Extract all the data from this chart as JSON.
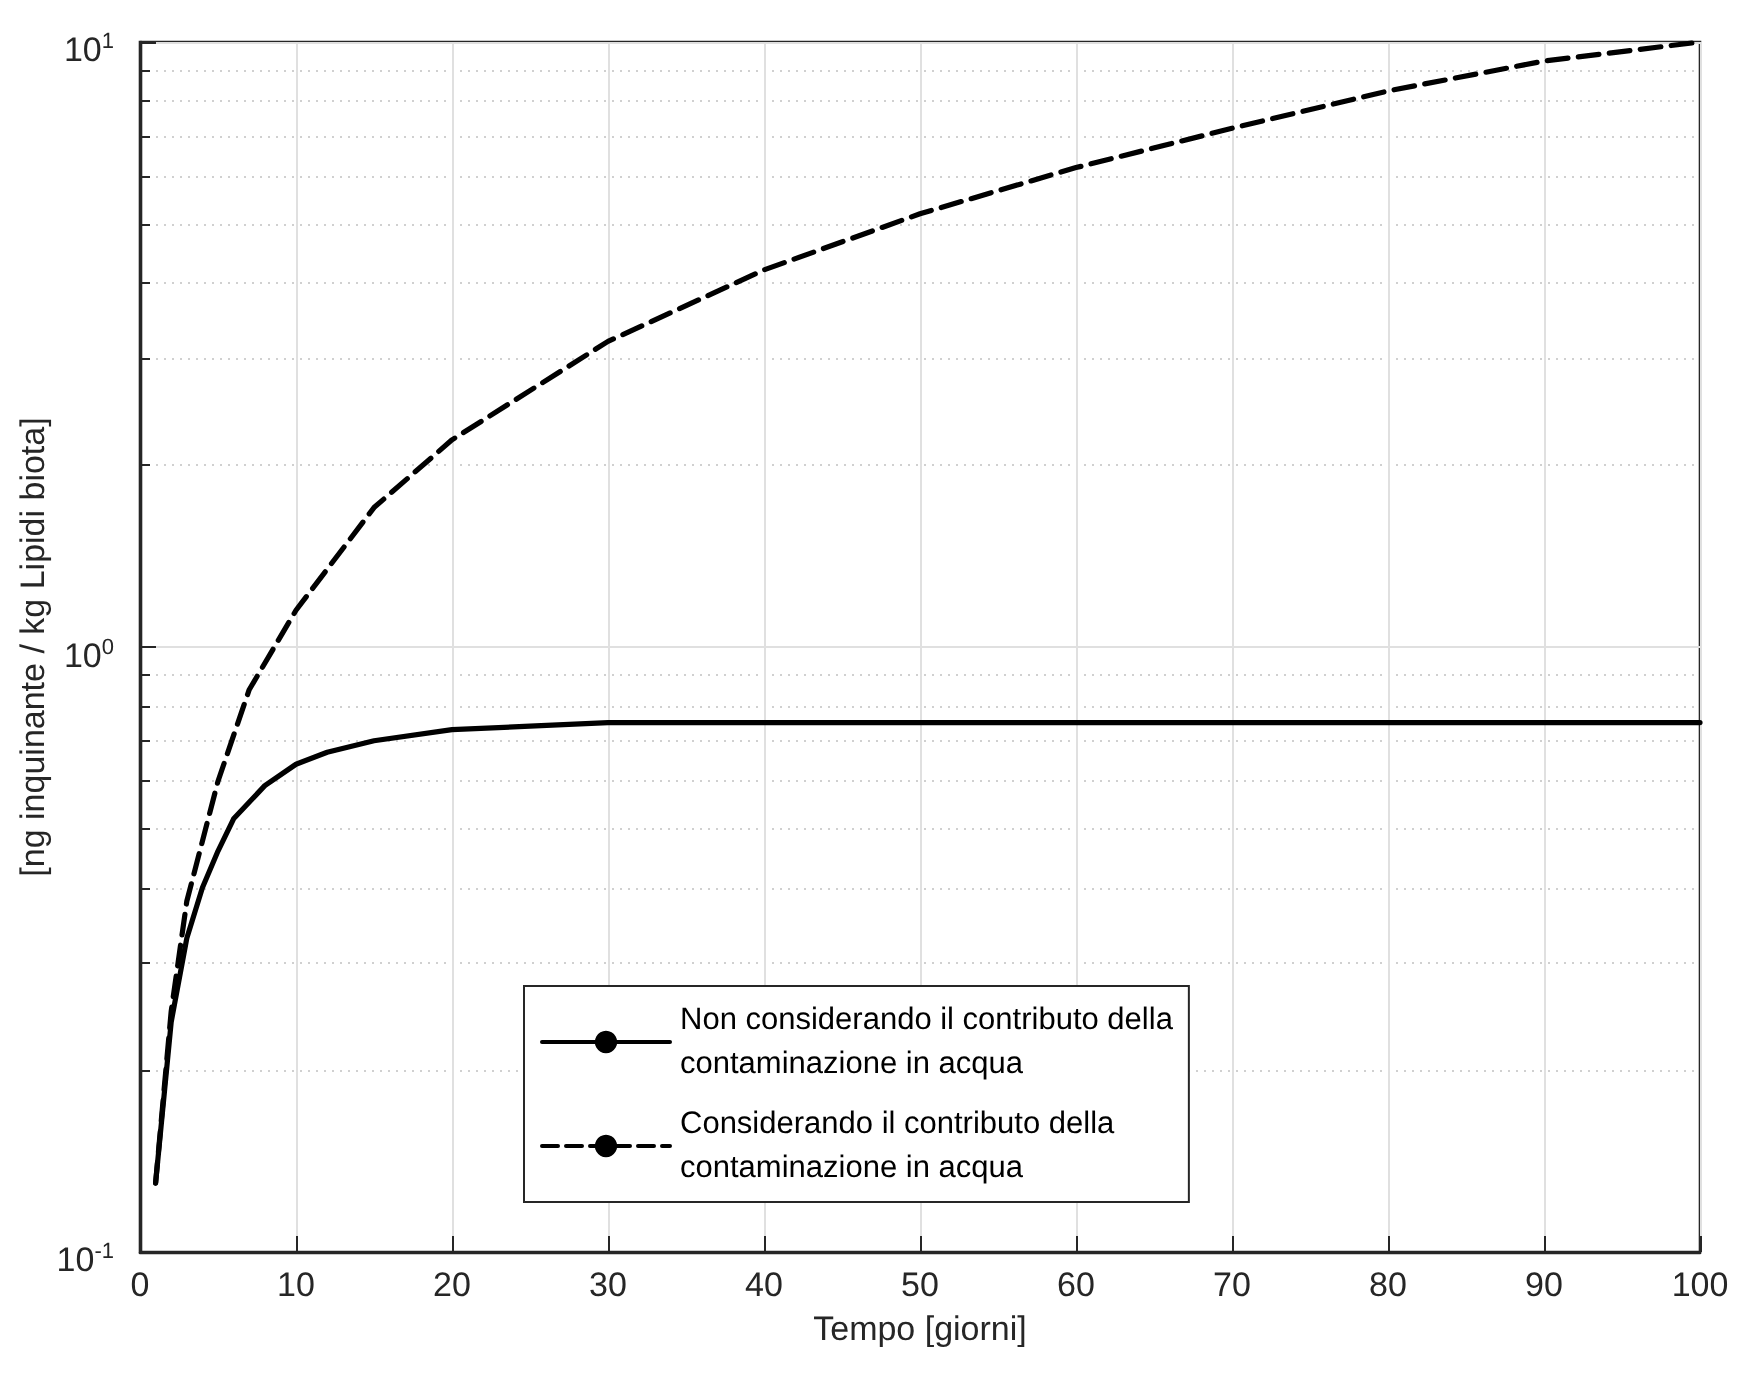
{
  "chart_data": {
    "type": "line",
    "xlabel": "Tempo [giorni]",
    "ylabel": "[ng inquinante / kg Lipidi biota]",
    "xlim": [
      0,
      100
    ],
    "xticks": [
      0,
      10,
      20,
      30,
      40,
      50,
      60,
      70,
      80,
      90,
      100
    ],
    "ylim": [
      0.1,
      10
    ],
    "yticks": [
      {
        "value": 0.1,
        "label": "10$^{-1}$"
      },
      {
        "value": 1,
        "label": "10$^{0}$"
      },
      {
        "value": 10,
        "label": "10$^{1}$"
      }
    ],
    "log": "y",
    "grid": true,
    "legend": "bottom",
    "marker": "none",
    "series": [
      {
        "name": "Non considerando il contributo della contaminazione in acqua",
        "color": "#000000",
        "line_style": "solid",
        "x": [
          1,
          2,
          3,
          4,
          5,
          6,
          8,
          10,
          12,
          15,
          20,
          25,
          30,
          40,
          60,
          80,
          100
        ],
        "values": [
          0.13,
          0.24,
          0.33,
          0.4,
          0.46,
          0.52,
          0.59,
          0.64,
          0.67,
          0.7,
          0.73,
          0.74,
          0.75,
          0.75,
          0.75,
          0.75,
          0.75
        ]
      },
      {
        "name": "Considerando il contributo della contaminazione in acqua",
        "color": "#000000",
        "line_style": "dashed",
        "x": [
          1,
          2,
          3,
          5,
          7,
          10,
          15,
          20,
          30,
          40,
          50,
          60,
          70,
          80,
          90,
          100
        ],
        "values": [
          0.13,
          0.25,
          0.38,
          0.6,
          0.85,
          1.15,
          1.7,
          2.2,
          3.2,
          4.2,
          5.2,
          6.2,
          7.2,
          8.3,
          9.3,
          10
        ]
      }
    ]
  }
}
